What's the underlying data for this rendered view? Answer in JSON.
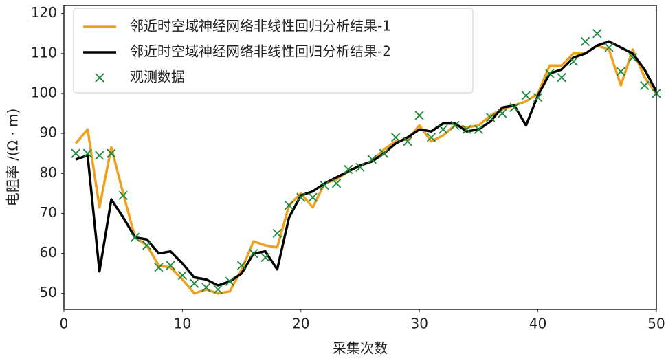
{
  "chart_data": {
    "type": "line",
    "xlabel": "采集次数",
    "ylabel": "电阻率 /(Ω · m)",
    "x": [
      1,
      2,
      3,
      4,
      5,
      6,
      7,
      8,
      9,
      10,
      11,
      12,
      13,
      14,
      15,
      16,
      17,
      18,
      19,
      20,
      21,
      22,
      23,
      24,
      25,
      26,
      27,
      28,
      29,
      30,
      31,
      32,
      33,
      34,
      35,
      36,
      37,
      38,
      39,
      40,
      41,
      42,
      43,
      44,
      45,
      46,
      47,
      48,
      49,
      50
    ],
    "series": [
      {
        "name": "邻近时空域神经网络非线性回归分析结果-1",
        "type": "line",
        "color": "#f0a020",
        "values": [
          87.5,
          91,
          71.5,
          86.5,
          75,
          64,
          62,
          57,
          56.5,
          53.5,
          50,
          51,
          50,
          50.5,
          56,
          63,
          62,
          61.5,
          72,
          75,
          71.5,
          77.5,
          78.5,
          80.5,
          82,
          83,
          86,
          88,
          88.5,
          92,
          88,
          89.5,
          92,
          91.5,
          92,
          94.5,
          96,
          97,
          98,
          100,
          107,
          107,
          110,
          110,
          112,
          111,
          102,
          111,
          104,
          100
        ]
      },
      {
        "name": "邻近时空域神经网络非线性回归分析结果-2",
        "type": "line",
        "color": "#000000",
        "values": [
          83.5,
          84.5,
          55.5,
          73.5,
          69,
          64,
          63.5,
          60,
          60.5,
          57.5,
          54,
          53.5,
          52,
          53,
          55,
          60,
          60.5,
          56,
          69,
          74.5,
          75.5,
          77.5,
          79,
          80.5,
          82,
          83,
          85,
          87.5,
          89,
          91,
          90.5,
          92.5,
          92.5,
          90.5,
          91,
          93,
          96.5,
          97,
          92,
          99.5,
          105,
          106,
          109,
          110,
          112,
          113,
          111.5,
          110,
          106,
          100.5
        ]
      },
      {
        "name": "观测数据",
        "type": "scatter",
        "color": "#1a8a3a",
        "values": [
          85,
          85,
          84.5,
          85,
          74.5,
          64,
          62,
          56.5,
          57,
          54.5,
          52.5,
          51.5,
          51,
          53,
          57,
          60,
          59,
          65,
          72,
          74,
          74,
          77,
          77.5,
          81,
          81.5,
          83.5,
          85,
          89,
          88,
          94.5,
          89,
          91,
          92,
          91,
          91,
          94,
          95,
          96.5,
          99.5,
          99,
          105,
          104,
          108,
          113,
          115,
          111.5,
          105.5,
          109,
          102,
          100
        ]
      }
    ],
    "xlim": [
      0,
      50
    ],
    "xticks": [
      0,
      10,
      20,
      30,
      40,
      50
    ],
    "ylim": [
      46,
      122
    ],
    "yticks": [
      50,
      60,
      70,
      80,
      90,
      100,
      110,
      120
    ],
    "legend": "upper-left",
    "grid": false
  }
}
